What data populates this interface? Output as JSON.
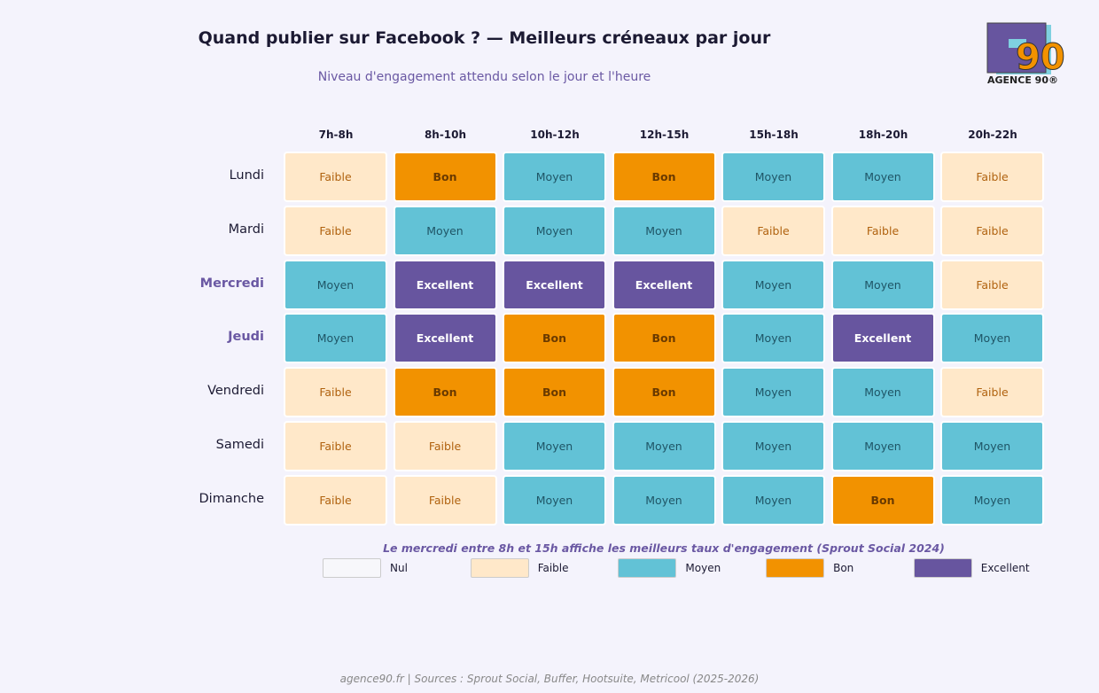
{
  "chart_data": {
    "type": "heatmap",
    "title": "Quand publier sur Facebook ? — Meilleurs créneaux par jour",
    "subtitle": "Niveau d'engagement attendu selon le jour et l'heure",
    "columns": [
      "7h-8h",
      "8h-10h",
      "10h-12h",
      "12h-15h",
      "15h-18h",
      "18h-20h",
      "20h-22h"
    ],
    "rows": [
      "Lundi",
      "Mardi",
      "Mercredi",
      "Jeudi",
      "Vendredi",
      "Samedi",
      "Dimanche"
    ],
    "highlighted_rows": [
      "Mercredi",
      "Jeudi"
    ],
    "values": [
      [
        "Faible",
        "Bon",
        "Moyen",
        "Bon",
        "Moyen",
        "Moyen",
        "Faible"
      ],
      [
        "Faible",
        "Moyen",
        "Moyen",
        "Moyen",
        "Faible",
        "Faible",
        "Faible"
      ],
      [
        "Moyen",
        "Excellent",
        "Excellent",
        "Excellent",
        "Moyen",
        "Moyen",
        "Faible"
      ],
      [
        "Moyen",
        "Excellent",
        "Bon",
        "Bon",
        "Moyen",
        "Excellent",
        "Moyen"
      ],
      [
        "Faible",
        "Bon",
        "Bon",
        "Bon",
        "Moyen",
        "Moyen",
        "Faible"
      ],
      [
        "Faible",
        "Faible",
        "Moyen",
        "Moyen",
        "Moyen",
        "Moyen",
        "Moyen"
      ],
      [
        "Faible",
        "Faible",
        "Moyen",
        "Moyen",
        "Moyen",
        "Bon",
        "Moyen"
      ]
    ],
    "levels": {
      "Nul": {
        "bg": "#f7f7fb",
        "fg": "#555555"
      },
      "Faible": {
        "bg": "#ffe8c9",
        "fg": "#b0620f"
      },
      "Moyen": {
        "bg": "#62c2d6",
        "fg": "#1f5566"
      },
      "Bon": {
        "bg": "#f29200",
        "fg": "#6a3a00"
      },
      "Excellent": {
        "bg": "#67559f",
        "fg": "#ffffff"
      }
    },
    "legend": [
      "Nul",
      "Faible",
      "Moyen",
      "Bon",
      "Excellent"
    ],
    "annotation": "Le mercredi entre 8h et 15h affiche les meilleurs taux d'engagement (Sprout Social 2024)"
  },
  "logo": {
    "text": "AGENCE 90®",
    "number": "90"
  },
  "footer": "agence90.fr  |  Sources : Sprout Social, Buffer, Hootsuite, Metricool (2025-2026)"
}
